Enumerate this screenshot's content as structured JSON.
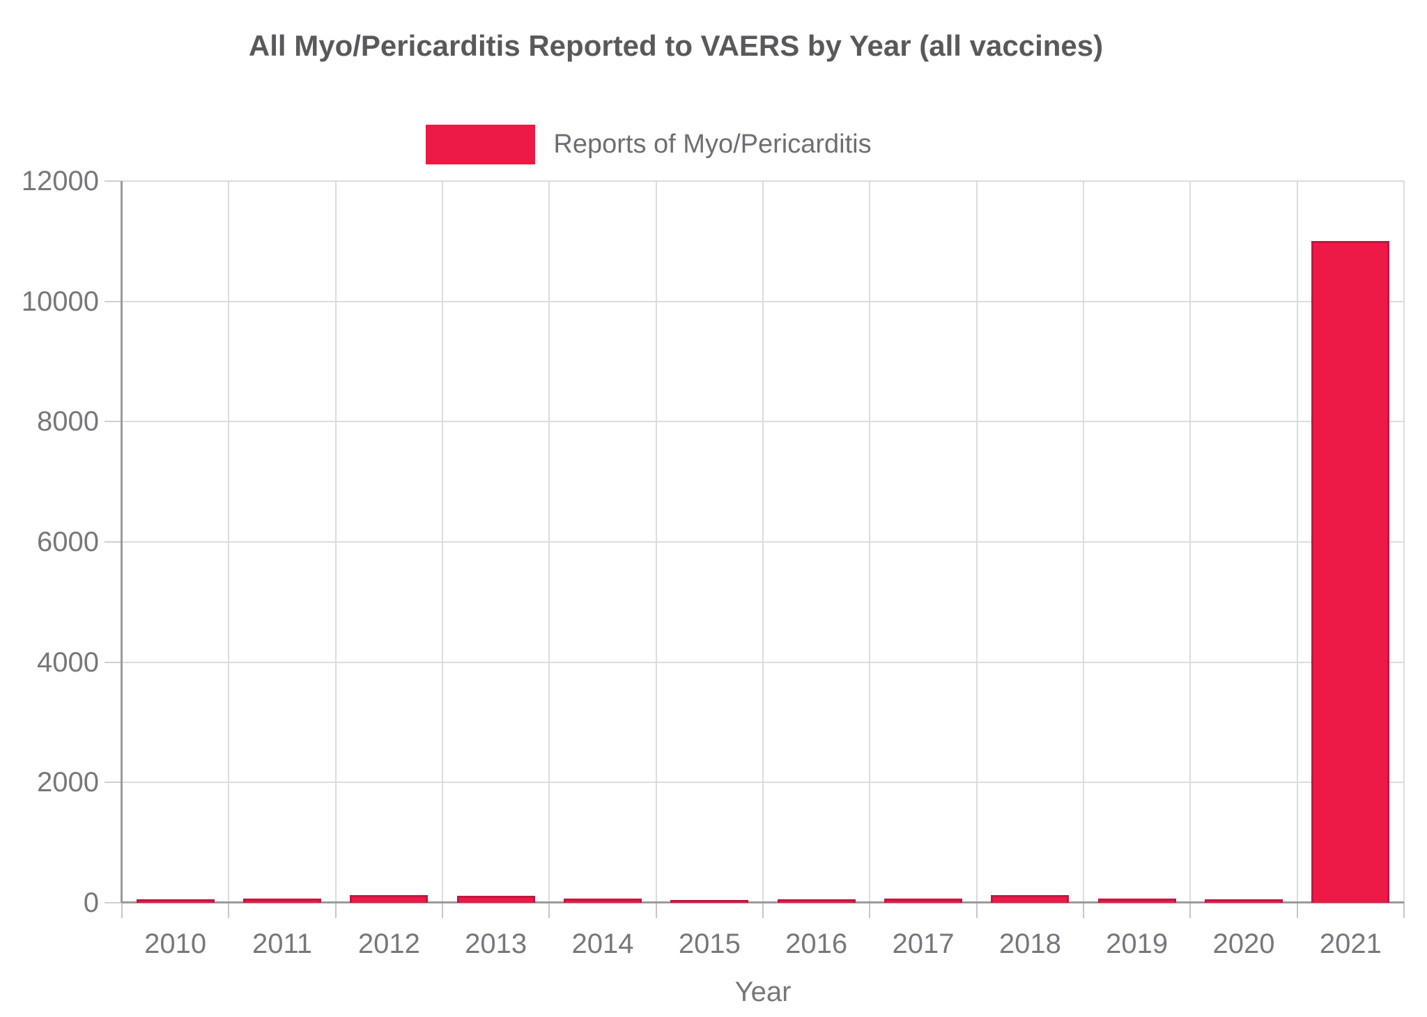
{
  "chart_data": {
    "type": "bar",
    "title": "All Myo/Pericarditis Reported to VAERS by Year (all vaccines)",
    "series_name": "Reports of Myo/Pericarditis",
    "categories": [
      "2010",
      "2011",
      "2012",
      "2013",
      "2014",
      "2015",
      "2016",
      "2017",
      "2018",
      "2019",
      "2020",
      "2021"
    ],
    "values": [
      60,
      70,
      125,
      115,
      70,
      45,
      55,
      75,
      125,
      75,
      60,
      11000
    ],
    "xlabel": "Year",
    "ylabel": "",
    "ylim": [
      0,
      12000
    ],
    "yticks": [
      0,
      2000,
      4000,
      6000,
      8000,
      10000,
      12000
    ],
    "grid": true,
    "legend_position": "top-center",
    "bar_color": "#ED1A47",
    "bar_border_color": "#C21740",
    "title_color": "#58595b",
    "label_color": "#76777a"
  }
}
